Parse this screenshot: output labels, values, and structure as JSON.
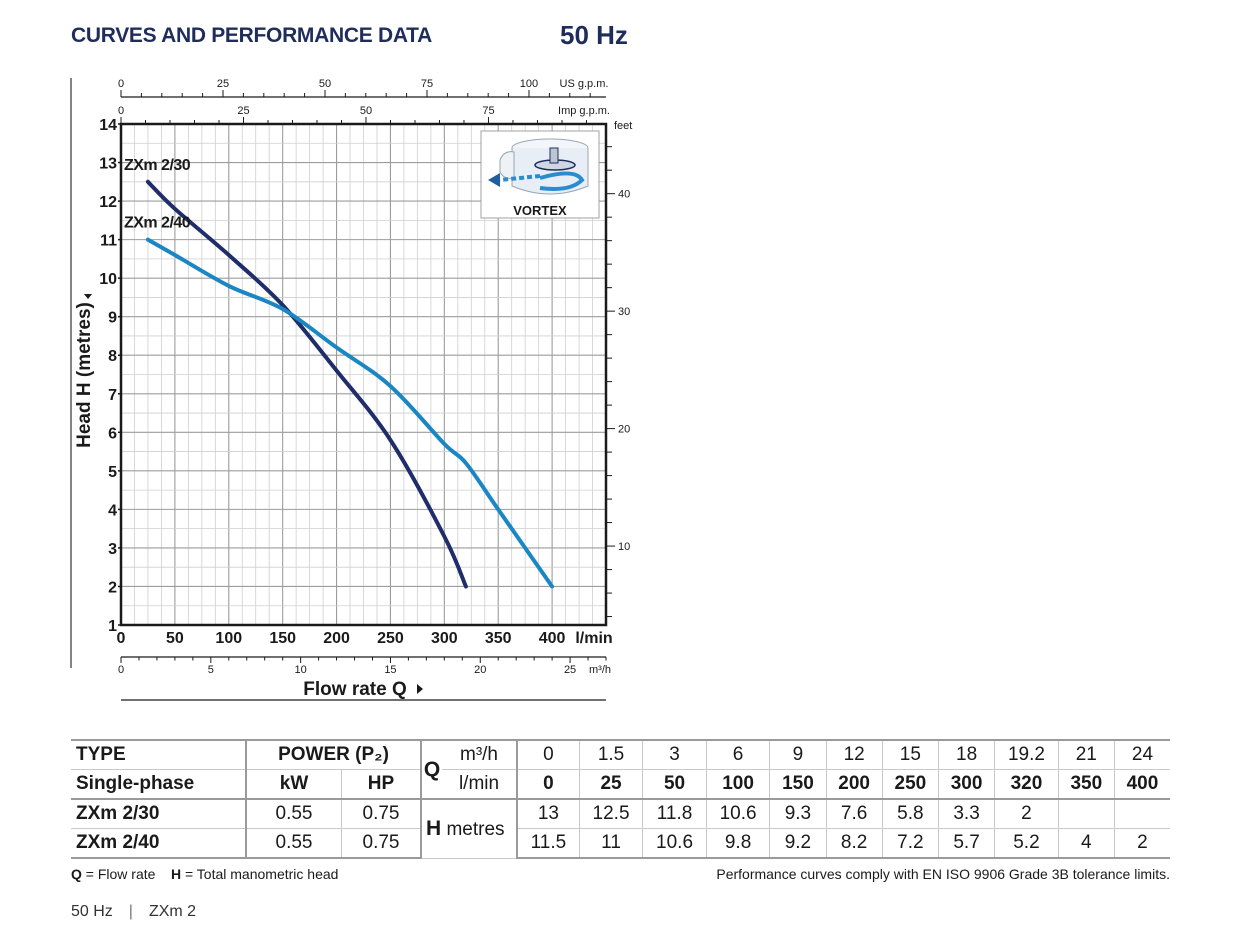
{
  "header": {
    "title": "CURVES AND PERFORMANCE DATA",
    "frequency": "50 Hz"
  },
  "chart_data": {
    "type": "line",
    "ylabel": "Head H (metres)",
    "xlabel": "Flow rate Q",
    "x_unit": "l/min",
    "ylim": [
      1,
      14
    ],
    "xlim": [
      0,
      450
    ],
    "y_ticks": [
      1,
      2,
      3,
      4,
      5,
      6,
      7,
      8,
      9,
      10,
      11,
      12,
      13,
      14
    ],
    "x_ticks": [
      0,
      50,
      100,
      150,
      200,
      250,
      300,
      350,
      400
    ],
    "grid": true,
    "secondary_axes": {
      "us_gpm": {
        "label": "US g.p.m.",
        "ticks": [
          0,
          25,
          50,
          75,
          100
        ]
      },
      "imp_gpm": {
        "label": "Imp g.p.m.",
        "ticks": [
          0,
          25,
          50,
          75
        ]
      },
      "feet": {
        "label": "feet",
        "ticks": [
          10,
          20,
          30,
          40
        ]
      },
      "m3h": {
        "label": "m³/h",
        "ticks": [
          0,
          5,
          10,
          15,
          20,
          25
        ]
      }
    },
    "series": [
      {
        "name": "ZXm 2/30",
        "color": "#1f2d6b",
        "x": [
          25,
          50,
          100,
          150,
          200,
          250,
          300,
          320
        ],
        "y": [
          12.5,
          11.8,
          10.6,
          9.3,
          7.6,
          5.8,
          3.3,
          2
        ]
      },
      {
        "name": "ZXm 2/40",
        "color": "#1a86c4",
        "x": [
          25,
          50,
          100,
          150,
          200,
          250,
          300,
          320,
          350,
          400
        ],
        "y": [
          11,
          10.6,
          9.8,
          9.2,
          8.2,
          7.2,
          5.7,
          5.2,
          4,
          2
        ]
      }
    ],
    "inset": {
      "label": "VORTEX"
    }
  },
  "table": {
    "type_label": "TYPE",
    "phase_label": "Single-phase",
    "power_label": "POWER (P₂)",
    "kw_label": "kW",
    "hp_label": "HP",
    "q_label": "Q",
    "m3h_label": "m³/h",
    "lmin_label": "l/min",
    "h_label": "H",
    "metres_label": "metres",
    "m3h": [
      "0",
      "1.5",
      "3",
      "6",
      "9",
      "12",
      "15",
      "18",
      "19.2",
      "21",
      "24"
    ],
    "lmin": [
      "0",
      "25",
      "50",
      "100",
      "150",
      "200",
      "250",
      "300",
      "320",
      "350",
      "400"
    ],
    "rows": [
      {
        "model": "ZXm 2/30",
        "kw": "0.55",
        "hp": "0.75",
        "h": [
          "13",
          "12.5",
          "11.8",
          "10.6",
          "9.3",
          "7.6",
          "5.8",
          "3.3",
          "2",
          "",
          ""
        ]
      },
      {
        "model": "ZXm 2/40",
        "kw": "0.55",
        "hp": "0.75",
        "h": [
          "11.5",
          "11",
          "10.6",
          "9.8",
          "9.2",
          "8.2",
          "7.2",
          "5.7",
          "5.2",
          "4",
          "2"
        ]
      }
    ]
  },
  "footer": {
    "q_key": "Q",
    "q_def": " = Flow rate",
    "h_key": "H",
    "h_def": " = Total manometric head",
    "compliance": "Performance curves comply with EN ISO 9906 Grade 3B tolerance limits.",
    "brand_freq": "50 Hz",
    "brand_sep": "|",
    "brand_model": "ZXm 2"
  }
}
